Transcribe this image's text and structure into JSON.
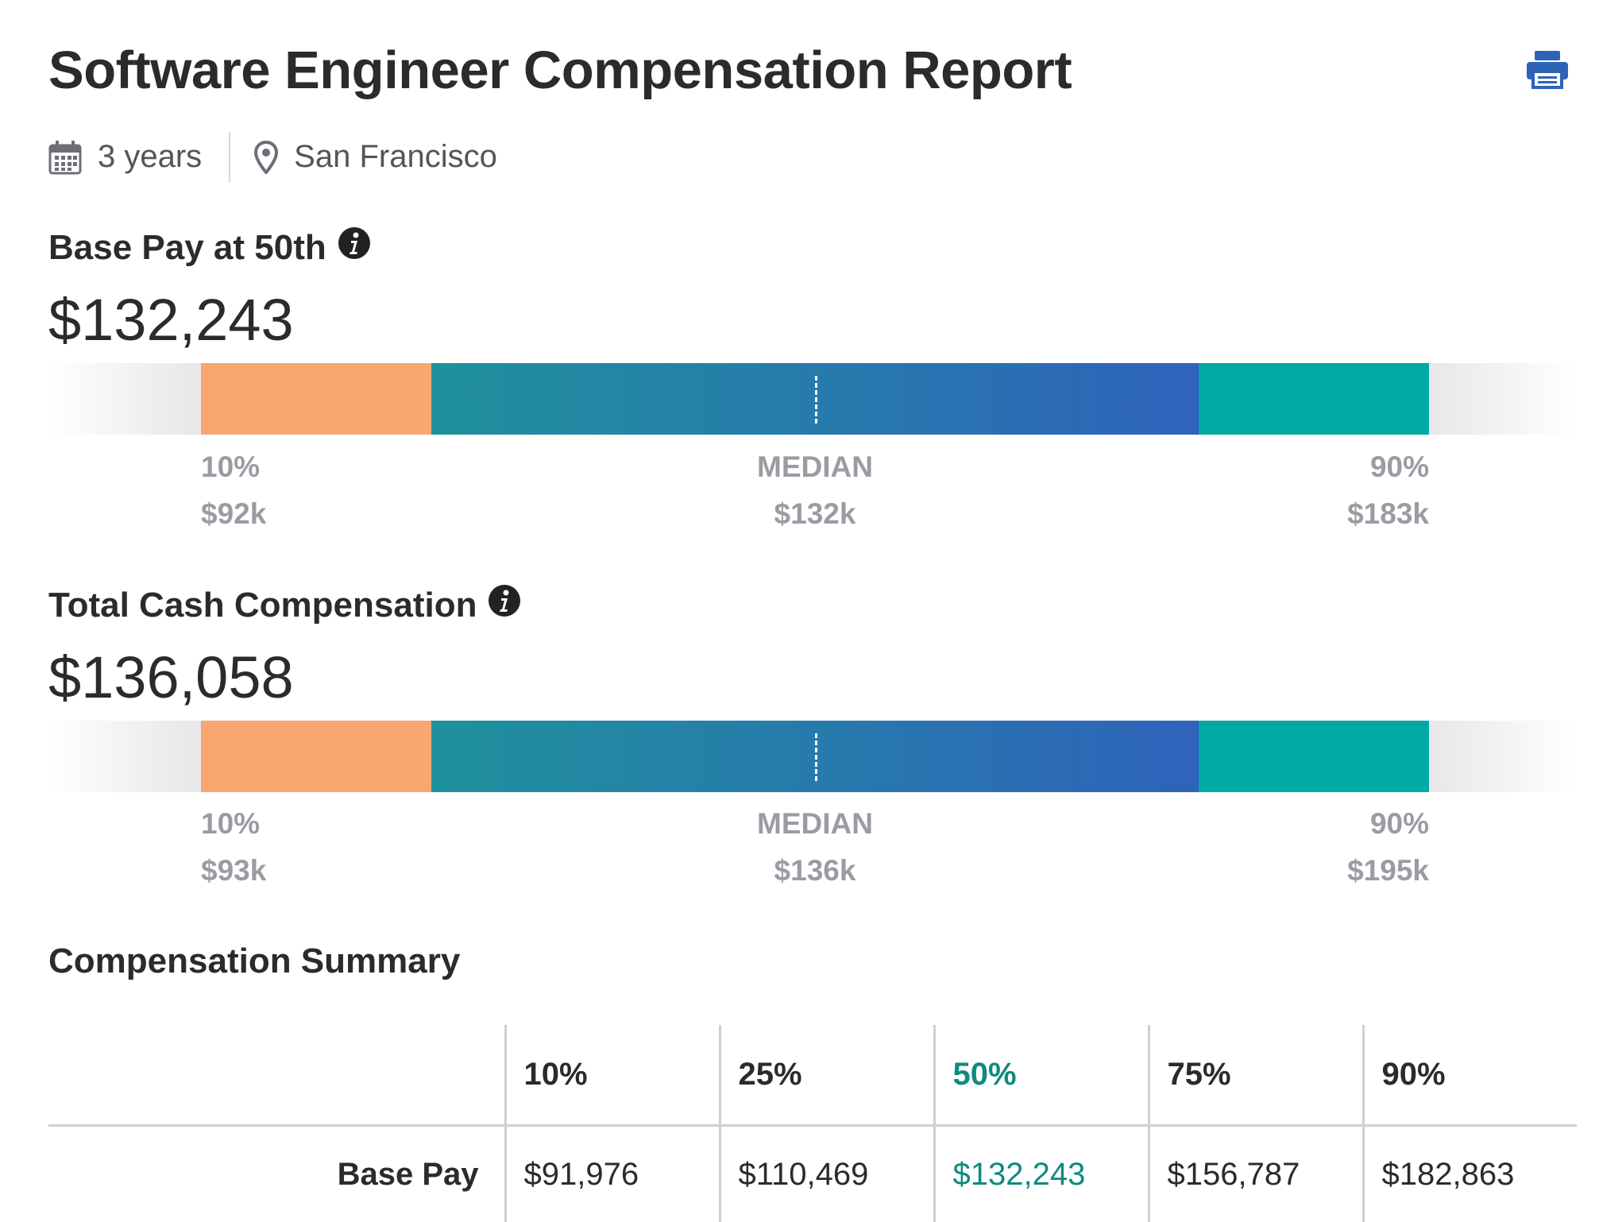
{
  "header": {
    "title": "Software Engineer Compensation Report",
    "print_icon": "print-icon",
    "experience_icon": "calendar-icon",
    "experience": "3 years",
    "location_icon": "map-pin-icon",
    "location": "San Francisco"
  },
  "base_pay": {
    "heading": "Base Pay at 50th",
    "info_icon": "info-icon",
    "value": "$132,243",
    "low_label": "10%",
    "low_value": "$92k",
    "median_label": "MEDIAN",
    "median_value": "$132k",
    "high_label": "90%",
    "high_value": "$183k"
  },
  "total_cash": {
    "heading": "Total Cash Compensation",
    "info_icon": "info-icon",
    "value": "$136,058",
    "low_label": "10%",
    "low_value": "$93k",
    "median_label": "MEDIAN",
    "median_value": "$136k",
    "high_label": "90%",
    "high_value": "$195k"
  },
  "summary": {
    "heading": "Compensation Summary",
    "columns": [
      "10%",
      "25%",
      "50%",
      "75%",
      "90%"
    ],
    "highlight_column": "50%",
    "rows": [
      {
        "label": "Base Pay",
        "values": [
          "$91,976",
          "$110,469",
          "$132,243",
          "$156,787",
          "$182,863"
        ]
      }
    ]
  },
  "colors": {
    "low_segment": "#f7a76f",
    "mid_segment_start": "#1f919d",
    "mid_segment_end": "#2f63bb",
    "high_segment": "#00a9a4",
    "highlight_text": "#0e8a80",
    "print_icon": "#2e63b8"
  }
}
